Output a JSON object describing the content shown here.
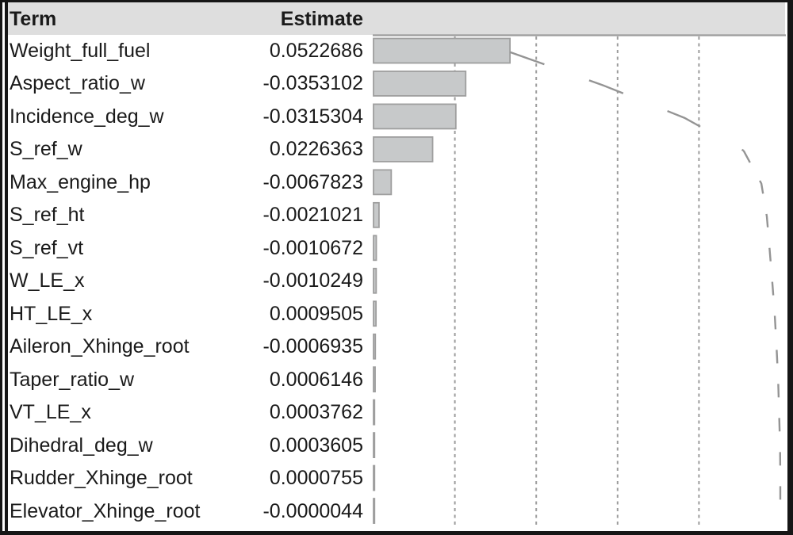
{
  "report": {
    "columns": {
      "term": "Term",
      "estimate": "Estimate"
    }
  },
  "rows": [
    {
      "term": "Weight_full_fuel",
      "estimate": "0.0522686"
    },
    {
      "term": "Aspect_ratio_w",
      "estimate": "-0.0353102"
    },
    {
      "term": "Incidence_deg_w",
      "estimate": "-0.0315304"
    },
    {
      "term": "S_ref_w",
      "estimate": "0.0226363"
    },
    {
      "term": "Max_engine_hp",
      "estimate": "-0.0067823"
    },
    {
      "term": "S_ref_ht",
      "estimate": "-0.0021021"
    },
    {
      "term": "S_ref_vt",
      "estimate": "-0.0010672"
    },
    {
      "term": "W_LE_x",
      "estimate": "-0.0010249"
    },
    {
      "term": "HT_LE_x",
      "estimate": "0.0009505"
    },
    {
      "term": "Aileron_Xhinge_root",
      "estimate": "-0.0006935"
    },
    {
      "term": "Taper_ratio_w",
      "estimate": "0.0006146"
    },
    {
      "term": "VT_LE_x",
      "estimate": "0.0003762"
    },
    {
      "term": "Dihedral_deg_w",
      "estimate": "0.0003605"
    },
    {
      "term": "Rudder_Xhinge_root",
      "estimate": "0.0000755"
    },
    {
      "term": "Elevator_Xhinge_root",
      "estimate": "-0.0000044"
    }
  ],
  "chart_data": {
    "type": "bar",
    "orientation": "horizontal",
    "title": "",
    "columns": [
      "Term",
      "Estimate"
    ],
    "categories": [
      "Weight_full_fuel",
      "Aspect_ratio_w",
      "Incidence_deg_w",
      "S_ref_w",
      "Max_engine_hp",
      "S_ref_ht",
      "S_ref_vt",
      "W_LE_x",
      "HT_LE_x",
      "Aileron_Xhinge_root",
      "Taper_ratio_w",
      "VT_LE_x",
      "Dihedral_deg_w",
      "Rudder_Xhinge_root",
      "Elevator_Xhinge_root"
    ],
    "values": [
      0.0522686,
      -0.0353102,
      -0.0315304,
      0.0226363,
      -0.0067823,
      -0.0021021,
      -0.0010672,
      -0.0010249,
      0.0009505,
      -0.0006935,
      0.0006146,
      0.0003762,
      0.0003605,
      7.55e-05,
      -4.4e-06
    ],
    "bar_length_metric": "absolute_value_of_estimate",
    "x_axis_range_fraction_of_total": [
      0,
      1
    ],
    "gridlines": {
      "style": "dashed-vertical",
      "fractions_of_total": [
        0.2,
        0.4,
        0.6,
        0.8
      ]
    },
    "cumulative_curve": {
      "style": "dashed",
      "description": "cumulative sum of absolute estimates, reaches 1.0 of total"
    },
    "legend": "none"
  },
  "colors": {
    "frame": "#161616",
    "header_bg": "#dedede",
    "text": "#1a1a1a",
    "bar_fill": "#c7c9ca",
    "bar_stroke": "#9e9e9e",
    "gridline": "#9c9c9c",
    "axis_line": "#9c9c9c",
    "curve": "#949494"
  }
}
